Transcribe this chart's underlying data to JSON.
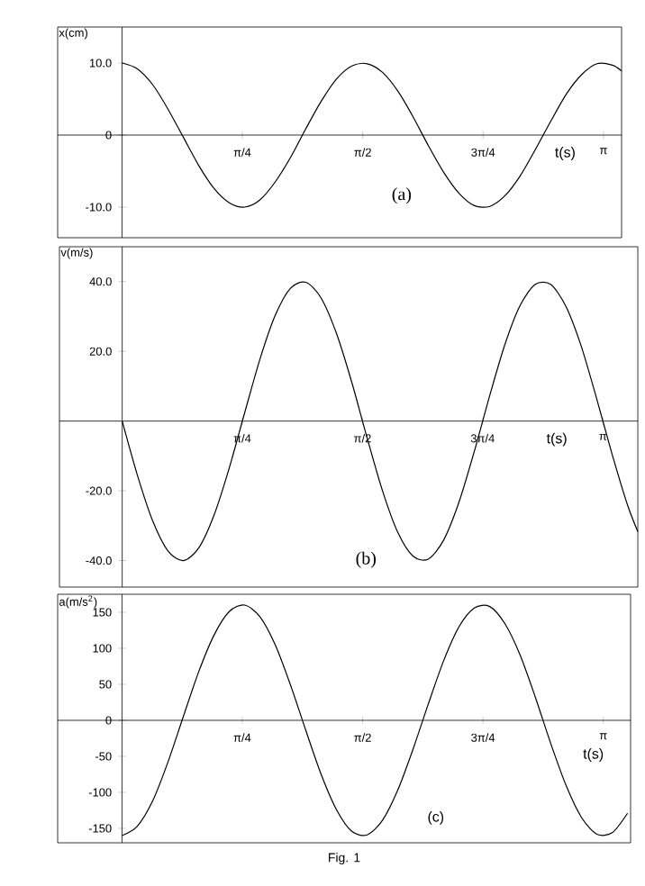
{
  "chart_data": [
    {
      "type": "line",
      "ylabel": "x(cm)",
      "xlabel": "t(s)",
      "annotations": [
        "(a)"
      ],
      "xlim": [
        -0.42,
        3.26
      ],
      "ylim": [
        -14.25,
        15
      ],
      "xticks": [
        {
          "value": 0.785,
          "label": "π/4"
        },
        {
          "value": 1.571,
          "label": "π/2"
        },
        {
          "value": 2.356,
          "label": "3π/4"
        },
        {
          "value": 3.142,
          "label": "π"
        }
      ],
      "yticks": [
        {
          "value": 10,
          "label": "10.0"
        },
        0,
        {
          "value": -10,
          "label": "-10.0"
        }
      ],
      "series": [
        {
          "color": "#000000",
          "x": [
            0,
            0.1,
            0.2,
            0.3,
            0.4,
            0.5,
            0.6,
            0.7,
            0.8,
            0.9,
            1.0,
            1.1,
            1.2,
            1.3,
            1.4,
            1.5,
            1.6,
            1.7,
            1.8,
            1.9,
            2.0,
            2.1,
            2.2,
            2.3,
            2.4,
            2.5,
            2.6,
            2.7,
            2.8,
            2.9,
            3.0,
            3.1,
            3.2,
            3.26
          ],
          "values": [
            10,
            9.2,
            7.0,
            3.6,
            -0.3,
            -4.2,
            -7.4,
            -9.4,
            -10.0,
            -9.0,
            -6.5,
            -3.1,
            0.9,
            4.7,
            7.8,
            9.6,
            9.9,
            8.7,
            6.1,
            2.5,
            -1.5,
            -5.2,
            -8.1,
            -9.8,
            -9.9,
            -8.4,
            -5.6,
            -1.9,
            2.0,
            5.7,
            8.4,
            9.9,
            9.7,
            8.9
          ]
        }
      ]
    },
    {
      "type": "line",
      "ylabel": "v(m/s)",
      "xlabel": "t(s)",
      "annotations": [
        "(b)"
      ],
      "xlim": [
        -0.41,
        3.37
      ],
      "ylim": [
        -47.6,
        50
      ],
      "xticks": [
        {
          "value": 0.785,
          "label": "π/4"
        },
        {
          "value": 1.571,
          "label": "π/2"
        },
        {
          "value": 2.356,
          "label": "3π/4"
        },
        {
          "value": 3.142,
          "label": "π"
        }
      ],
      "yticks": [
        {
          "value": 40,
          "label": "40.0"
        },
        {
          "value": 20,
          "label": "20.0"
        },
        {
          "value": -20,
          "label": "-20.0"
        },
        {
          "value": -40,
          "label": "-40.0"
        }
      ],
      "series": [
        {
          "color": "#000000",
          "x": [
            0,
            0.1,
            0.2,
            0.3,
            0.4,
            0.5,
            0.6,
            0.7,
            0.8,
            0.9,
            1.0,
            1.1,
            1.2,
            1.3,
            1.4,
            1.5,
            1.6,
            1.7,
            1.8,
            1.9,
            2.0,
            2.1,
            2.2,
            2.3,
            2.4,
            2.5,
            2.6,
            2.7,
            2.8,
            2.9,
            3.0,
            3.1,
            3.2,
            3.3,
            3.37
          ],
          "values": [
            0,
            -15.6,
            -28.7,
            -37.3,
            -40.0,
            -36.4,
            -27.0,
            -13.4,
            2.3,
            17.7,
            30.3,
            38.1,
            39.8,
            35.3,
            25.2,
            11.2,
            -4.7,
            -19.8,
            -31.8,
            -38.7,
            -39.6,
            -34.2,
            -23.4,
            -8.9,
            7.0,
            21.8,
            33.1,
            39.2,
            39.2,
            32.9,
            21.5,
            6.6,
            -9.2,
            -23.7,
            -31.7
          ]
        }
      ]
    },
    {
      "type": "line",
      "ylabel": "a(m/s$^{2}$)",
      "xlabel": "t(s)",
      "annotations": [
        "(c)",
        "Fig. 1"
      ],
      "xlim": [
        -0.42,
        3.32
      ],
      "ylim": [
        -170,
        175
      ],
      "xticks": [
        {
          "value": 0.785,
          "label": "π/4"
        },
        {
          "value": 1.571,
          "label": "π/2"
        },
        {
          "value": 2.356,
          "label": "3π/4"
        },
        {
          "value": 3.142,
          "label": "π"
        }
      ],
      "yticks": [
        150,
        100,
        50,
        0,
        -50,
        -100,
        -150
      ],
      "series": [
        {
          "color": "#000000",
          "x": [
            0,
            0.1,
            0.2,
            0.3,
            0.4,
            0.5,
            0.6,
            0.7,
            0.8,
            0.9,
            1.0,
            1.1,
            1.2,
            1.3,
            1.4,
            1.5,
            1.6,
            1.7,
            1.8,
            1.9,
            2.0,
            2.1,
            2.2,
            2.3,
            2.4,
            2.5,
            2.6,
            2.7,
            2.8,
            2.9,
            3.0,
            3.1,
            3.2,
            3.3
          ],
          "values": [
            -160,
            -147,
            -112,
            -58,
            5,
            67,
            118,
            151,
            160,
            144,
            105,
            49,
            -14,
            -75,
            -124,
            -154,
            -159,
            -139,
            -97,
            -40,
            23,
            83,
            130,
            156,
            158,
            134,
            90,
            31,
            -33,
            -91,
            -135,
            -158,
            -156,
            -129
          ]
        }
      ]
    }
  ]
}
